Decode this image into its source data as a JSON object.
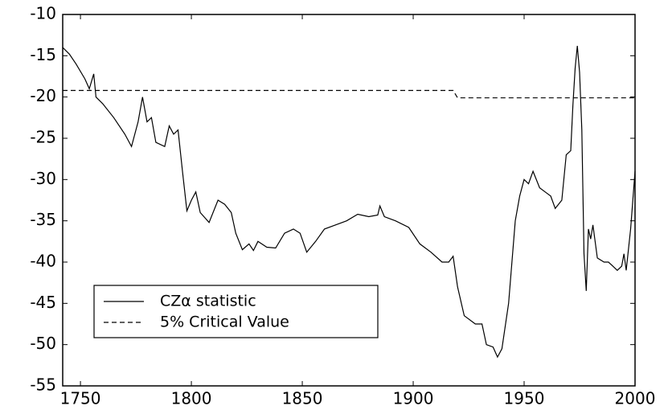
{
  "chart_data": {
    "type": "line",
    "xlim": [
      1742,
      2000
    ],
    "ylim": [
      -55,
      -10
    ],
    "xticks": [
      1750,
      1800,
      1850,
      1900,
      1950,
      2000
    ],
    "yticks": [
      -10,
      -15,
      -20,
      -25,
      -30,
      -35,
      -40,
      -45,
      -50,
      -55
    ],
    "legend": "lower left",
    "series": [
      {
        "name": "CZα statistic",
        "color": "#000000",
        "dash": false,
        "x": [
          1742,
          1745,
          1748,
          1752,
          1754,
          1756,
          1757,
          1760,
          1765,
          1770,
          1773,
          1776,
          1778,
          1780,
          1782,
          1784,
          1788,
          1790,
          1792,
          1794,
          1796,
          1798,
          1800,
          1802,
          1804,
          1808,
          1812,
          1815,
          1818,
          1820,
          1823,
          1826,
          1828,
          1830,
          1834,
          1838,
          1842,
          1846,
          1849,
          1852,
          1856,
          1860,
          1865,
          1870,
          1875,
          1880,
          1884,
          1885,
          1887,
          1892,
          1898,
          1903,
          1908,
          1913,
          1916,
          1918,
          1920,
          1923,
          1928,
          1931,
          1933,
          1936,
          1938,
          1940,
          1943,
          1946,
          1948,
          1950,
          1952,
          1954,
          1957,
          1960,
          1962,
          1964,
          1967,
          1969,
          1971,
          1972,
          1973,
          1974,
          1975,
          1976,
          1977,
          1978,
          1979,
          1980,
          1981,
          1983,
          1986,
          1988,
          1990,
          1992,
          1994,
          1995,
          1996,
          1998,
          2000
        ],
        "values": [
          -14,
          -14.8,
          -16,
          -17.8,
          -19,
          -17.2,
          -20,
          -20.8,
          -22.5,
          -24.5,
          -26,
          -23,
          -20,
          -23,
          -22.5,
          -25.5,
          -26,
          -23.5,
          -24.5,
          -24,
          -29,
          -33.8,
          -32.5,
          -31.5,
          -34,
          -35.2,
          -32.5,
          -33,
          -34,
          -36.5,
          -38.5,
          -37.8,
          -38.6,
          -37.5,
          -38.2,
          -38.3,
          -36.5,
          -36,
          -36.5,
          -38.8,
          -37.5,
          -36,
          -35.5,
          -35,
          -34.2,
          -34.5,
          -34.3,
          -33.2,
          -34.5,
          -35,
          -35.8,
          -37.8,
          -38.8,
          -40,
          -40,
          -39.3,
          -43,
          -46.5,
          -47.5,
          -47.5,
          -50,
          -50.3,
          -51.5,
          -50.5,
          -45,
          -35,
          -32,
          -30,
          -30.5,
          -29,
          -31,
          -31.6,
          -32,
          -33.5,
          -32.5,
          -27,
          -26.5,
          -21,
          -16.5,
          -13.8,
          -17,
          -24,
          -39,
          -43.5,
          -36,
          -37.2,
          -35.5,
          -39.5,
          -40,
          -40,
          -40.5,
          -41,
          -40.5,
          -39,
          -41,
          -36,
          -29
        ]
      },
      {
        "name": "5% Critical Value",
        "color": "#000000",
        "dash": true,
        "x": [
          1742,
          1918,
          1920,
          2000
        ],
        "values": [
          -19.2,
          -19.2,
          -20.1,
          -20.1
        ]
      }
    ]
  }
}
